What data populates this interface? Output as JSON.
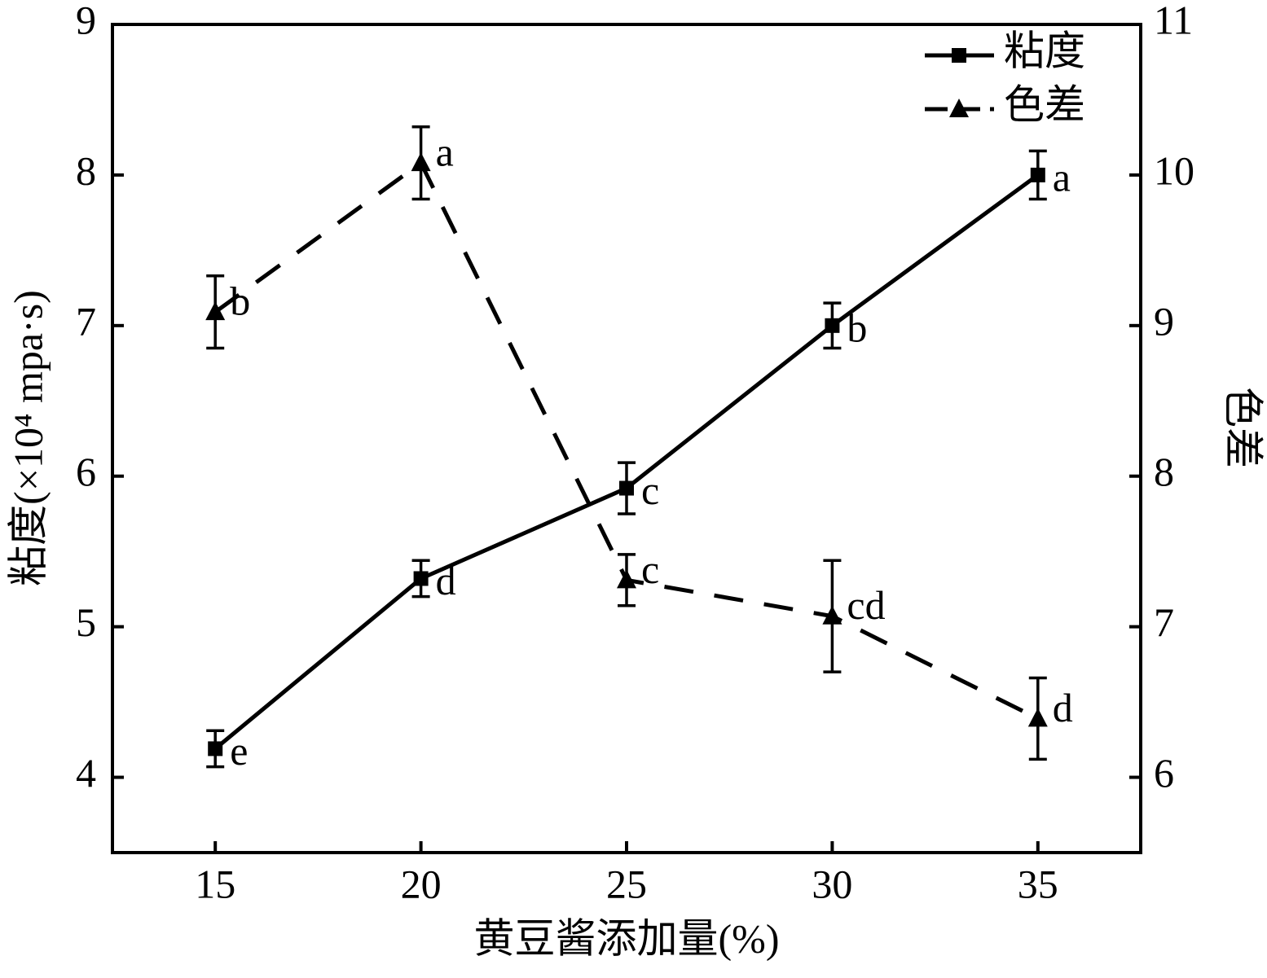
{
  "chart_data": {
    "type": "line",
    "xlabel": "黄豆酱添加量(%)",
    "ylabel": "粘度(×10⁴ mpa·s)",
    "y2label": "色差",
    "x": [
      15,
      20,
      25,
      30,
      35
    ],
    "xlim": [
      12.5,
      37.5
    ],
    "xticks": [
      15,
      20,
      25,
      30,
      35
    ],
    "ylim": [
      3.5,
      9
    ],
    "yticks": [
      4,
      5,
      6,
      7,
      8,
      9
    ],
    "y2lim": [
      5.5,
      11
    ],
    "y2ticks": [
      6,
      7,
      8,
      9,
      10,
      11
    ],
    "legend": "top-right",
    "series": [
      {
        "name": "粘度",
        "color": "#000000",
        "dash": "solid",
        "marker": "square",
        "values": [
          4.19,
          5.32,
          5.92,
          7.0,
          8.0
        ],
        "errors": [
          0.12,
          0.12,
          0.17,
          0.15,
          0.16
        ],
        "labels": [
          "e",
          "d",
          "c",
          "b",
          "a"
        ]
      },
      {
        "name": "色差",
        "color": "#000000",
        "dash": "dashed",
        "marker": "triangle",
        "axis": "y2",
        "values": [
          9.09,
          10.08,
          7.31,
          7.07,
          6.39
        ],
        "errors": [
          0.24,
          0.24,
          0.17,
          0.37,
          0.27
        ],
        "labels": [
          "b",
          "a",
          "c",
          "cd",
          "d"
        ]
      }
    ]
  }
}
